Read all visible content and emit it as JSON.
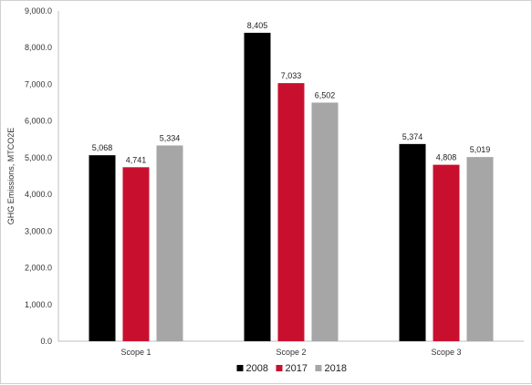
{
  "chart_data": {
    "type": "bar",
    "title": "",
    "xlabel": "",
    "ylabel": "GHG Emissions, MTCO2E",
    "ylim": [
      0,
      9000
    ],
    "yticks": [
      "0.0",
      "1,000.0",
      "2,000.0",
      "3,000.0",
      "4,000.0",
      "5,000.0",
      "6,000.0",
      "7,000.0",
      "8,000.0",
      "9,000.0"
    ],
    "categories": [
      "Scope 1",
      "Scope 2",
      "Scope 3"
    ],
    "series": [
      {
        "name": "2008",
        "color": "#000000",
        "values": [
          5068,
          8405,
          5374
        ],
        "labels": [
          "5,068",
          "8,405",
          "5,374"
        ]
      },
      {
        "name": "2017",
        "color": "#c8102e",
        "values": [
          4741,
          7033,
          4808
        ],
        "labels": [
          "4,741",
          "7,033",
          "4,808"
        ]
      },
      {
        "name": "2018",
        "color": "#a6a6a6",
        "values": [
          5334,
          6502,
          5019
        ],
        "labels": [
          "5,334",
          "6,502",
          "5,019"
        ]
      }
    ],
    "grid": false,
    "legend_position": "bottom"
  }
}
